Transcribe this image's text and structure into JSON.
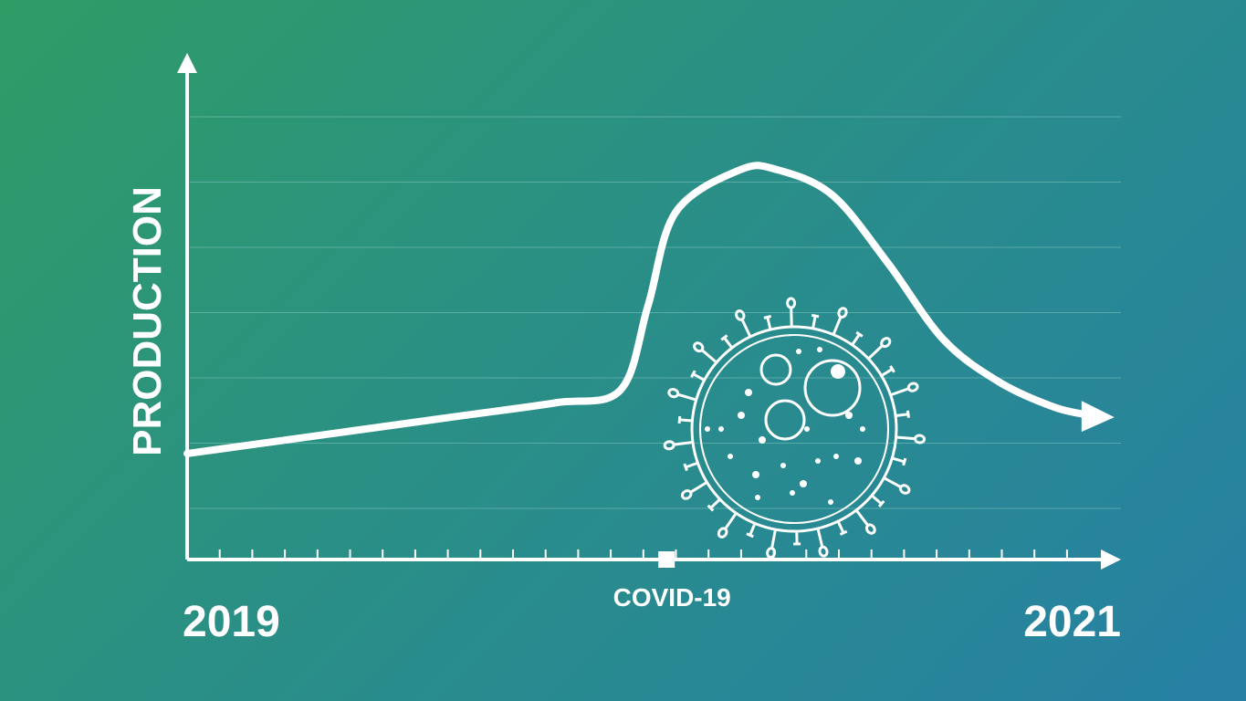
{
  "chart_data": {
    "type": "line",
    "title": "",
    "ylabel": "PRODUCTION",
    "xlabel": "",
    "x_start_label": "2019",
    "x_end_label": "2021",
    "event_marker": {
      "label": "COVID-19",
      "position": 0.52
    },
    "x": [
      0.0,
      0.1,
      0.2,
      0.3,
      0.4,
      0.47,
      0.5,
      0.53,
      0.6,
      0.64,
      0.7,
      0.76,
      0.82,
      0.88,
      0.94,
      0.98
    ],
    "series": [
      {
        "values": [
          0.25,
          0.28,
          0.31,
          0.34,
          0.37,
          0.4,
          0.6,
          0.82,
          0.92,
          0.92,
          0.86,
          0.7,
          0.52,
          0.42,
          0.36,
          0.34
        ]
      }
    ],
    "xlim": [
      0,
      1
    ],
    "ylim": [
      0,
      1.2
    ],
    "grid": true,
    "gridline_count": 7,
    "tick_count": 29,
    "illustration": "virus-icon",
    "colors": {
      "line": "#ffffff",
      "grid": "#7fc4c0",
      "bg_start": "#2f9c66",
      "bg_end": "#2680a4"
    }
  }
}
